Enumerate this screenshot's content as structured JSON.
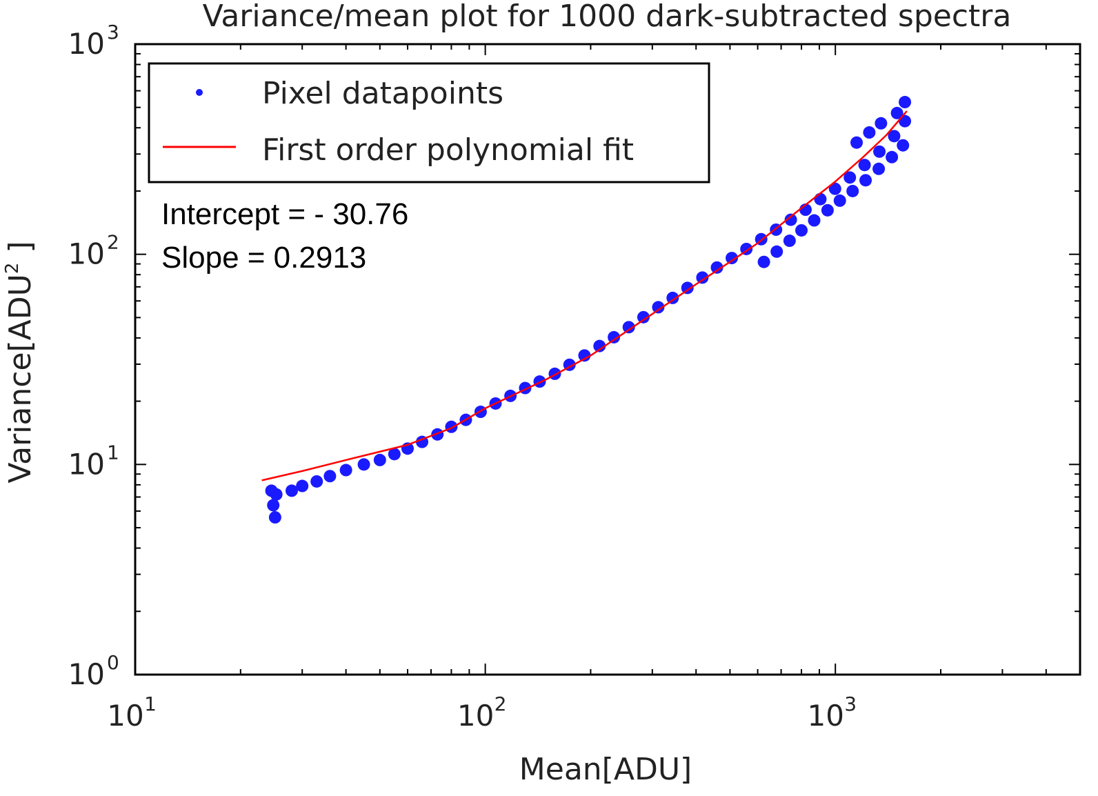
{
  "chart_data": {
    "type": "scatter",
    "title": "Variance/mean plot for 1000 dark-subtracted spectra",
    "xlabel": "Mean[ADU]",
    "ylabel_text": "Variance[ADU",
    "ylabel_sup": "2",
    "ylabel_close": " ]",
    "xscale": "log",
    "yscale": "log",
    "xlim": [
      10,
      5000
    ],
    "ylim": [
      1,
      1000
    ],
    "x_ticks": [
      {
        "base": "10",
        "exp": "1"
      },
      {
        "base": "10",
        "exp": "2"
      },
      {
        "base": "10",
        "exp": "3"
      }
    ],
    "y_ticks": [
      {
        "base": "10",
        "exp": "0"
      },
      {
        "base": "10",
        "exp": "1"
      },
      {
        "base": "10",
        "exp": "2"
      },
      {
        "base": "10",
        "exp": "3"
      }
    ],
    "grid": false,
    "legend_position": "upper-left",
    "series": [
      {
        "name": "Pixel datapoints",
        "kind": "scatter",
        "color": "#1a1aff",
        "points": [
          [
            24.5,
            7.5
          ],
          [
            24.8,
            6.4
          ],
          [
            25.1,
            5.6
          ],
          [
            25.3,
            7.2
          ],
          [
            28,
            7.5
          ],
          [
            30,
            7.9
          ],
          [
            33,
            8.3
          ],
          [
            36,
            8.8
          ],
          [
            40,
            9.4
          ],
          [
            45,
            10.0
          ],
          [
            50,
            10.5
          ],
          [
            55,
            11.2
          ],
          [
            60,
            11.9
          ],
          [
            66,
            12.8
          ],
          [
            73,
            13.9
          ],
          [
            80,
            15.1
          ],
          [
            88,
            16.3
          ],
          [
            97,
            17.8
          ],
          [
            107,
            19.5
          ],
          [
            118,
            21.2
          ],
          [
            130,
            23.1
          ],
          [
            143,
            24.8
          ],
          [
            158,
            27.0
          ],
          [
            174,
            29.8
          ],
          [
            192,
            33.0
          ],
          [
            212,
            36.6
          ],
          [
            233,
            40.3
          ],
          [
            257,
            45.0
          ],
          [
            283,
            50.2
          ],
          [
            312,
            56.0
          ],
          [
            343,
            62.0
          ],
          [
            378,
            69.2
          ],
          [
            417,
            77.5
          ],
          [
            459,
            86.5
          ],
          [
            506,
            96.0
          ],
          [
            557,
            106
          ],
          [
            614,
            118
          ],
          [
            677,
            131
          ],
          [
            746,
            146
          ],
          [
            822,
            163
          ],
          [
            906,
            183
          ],
          [
            998,
            205
          ],
          [
            1100,
            232
          ],
          [
            1212,
            266
          ],
          [
            1336,
            308
          ],
          [
            1472,
            365
          ],
          [
            1580,
            430
          ],
          [
            625,
            92
          ],
          [
            680,
            103
          ],
          [
            740,
            116
          ],
          [
            800,
            130
          ],
          [
            870,
            145
          ],
          [
            950,
            162
          ],
          [
            1030,
            180
          ],
          [
            1120,
            200
          ],
          [
            1220,
            225
          ],
          [
            1330,
            255
          ],
          [
            1450,
            290
          ],
          [
            1560,
            330
          ],
          [
            1150,
            340
          ],
          [
            1250,
            380
          ],
          [
            1350,
            420
          ],
          [
            1500,
            470
          ],
          [
            1580,
            530
          ]
        ]
      },
      {
        "name": "First order polynomial fit",
        "kind": "line",
        "color": "#ff0000",
        "points": [
          [
            23,
            8.4
          ],
          [
            30,
            9.3
          ],
          [
            40,
            10.5
          ],
          [
            60,
            12.4
          ],
          [
            80,
            14.9
          ],
          [
            100,
            18.5
          ],
          [
            150,
            25.5
          ],
          [
            200,
            33.0
          ],
          [
            300,
            52.0
          ],
          [
            400,
            72.0
          ],
          [
            500,
            92.0
          ],
          [
            600,
            113
          ],
          [
            800,
            166
          ],
          [
            1000,
            222
          ],
          [
            1200,
            290
          ],
          [
            1400,
            370
          ],
          [
            1600,
            480
          ]
        ]
      }
    ],
    "annotations": [
      "Intercept = - 30.76",
      "Slope = 0.2913"
    ]
  }
}
